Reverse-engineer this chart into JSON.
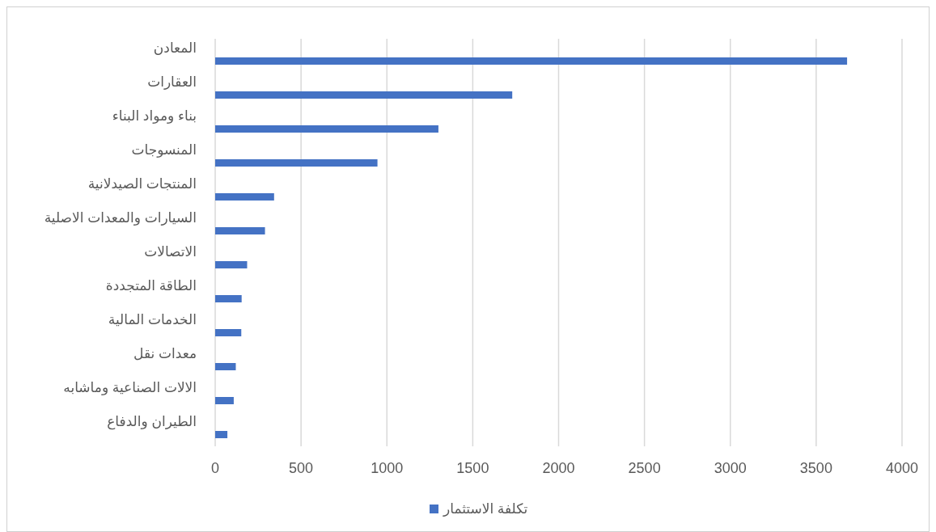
{
  "chart_data": {
    "type": "bar",
    "orientation": "horizontal",
    "categories": [
      "المعادن",
      "العقارات",
      "بناء ومواد البناء",
      "المنسوجات",
      "المنتجات الصيدلانية",
      "السيارات والمعدات الاصلية",
      "الاتصالات",
      "الطاقة المتجددة",
      "الخدمات المالية",
      "معدات نقل",
      "الالات الصناعية وماشابه",
      "الطيران والدفاع"
    ],
    "series": [
      {
        "name": "تكلفة الاستثمار",
        "color": "#4472c4",
        "values": [
          3680,
          1730,
          1300,
          945,
          343,
          290,
          186,
          154,
          152,
          120,
          108,
          71
        ]
      }
    ],
    "xlim": [
      0,
      4000
    ],
    "xticks": [
      0,
      500,
      1000,
      1500,
      2000,
      2500,
      3000,
      3500,
      4000
    ],
    "grid": "x",
    "legend": "bottom"
  }
}
